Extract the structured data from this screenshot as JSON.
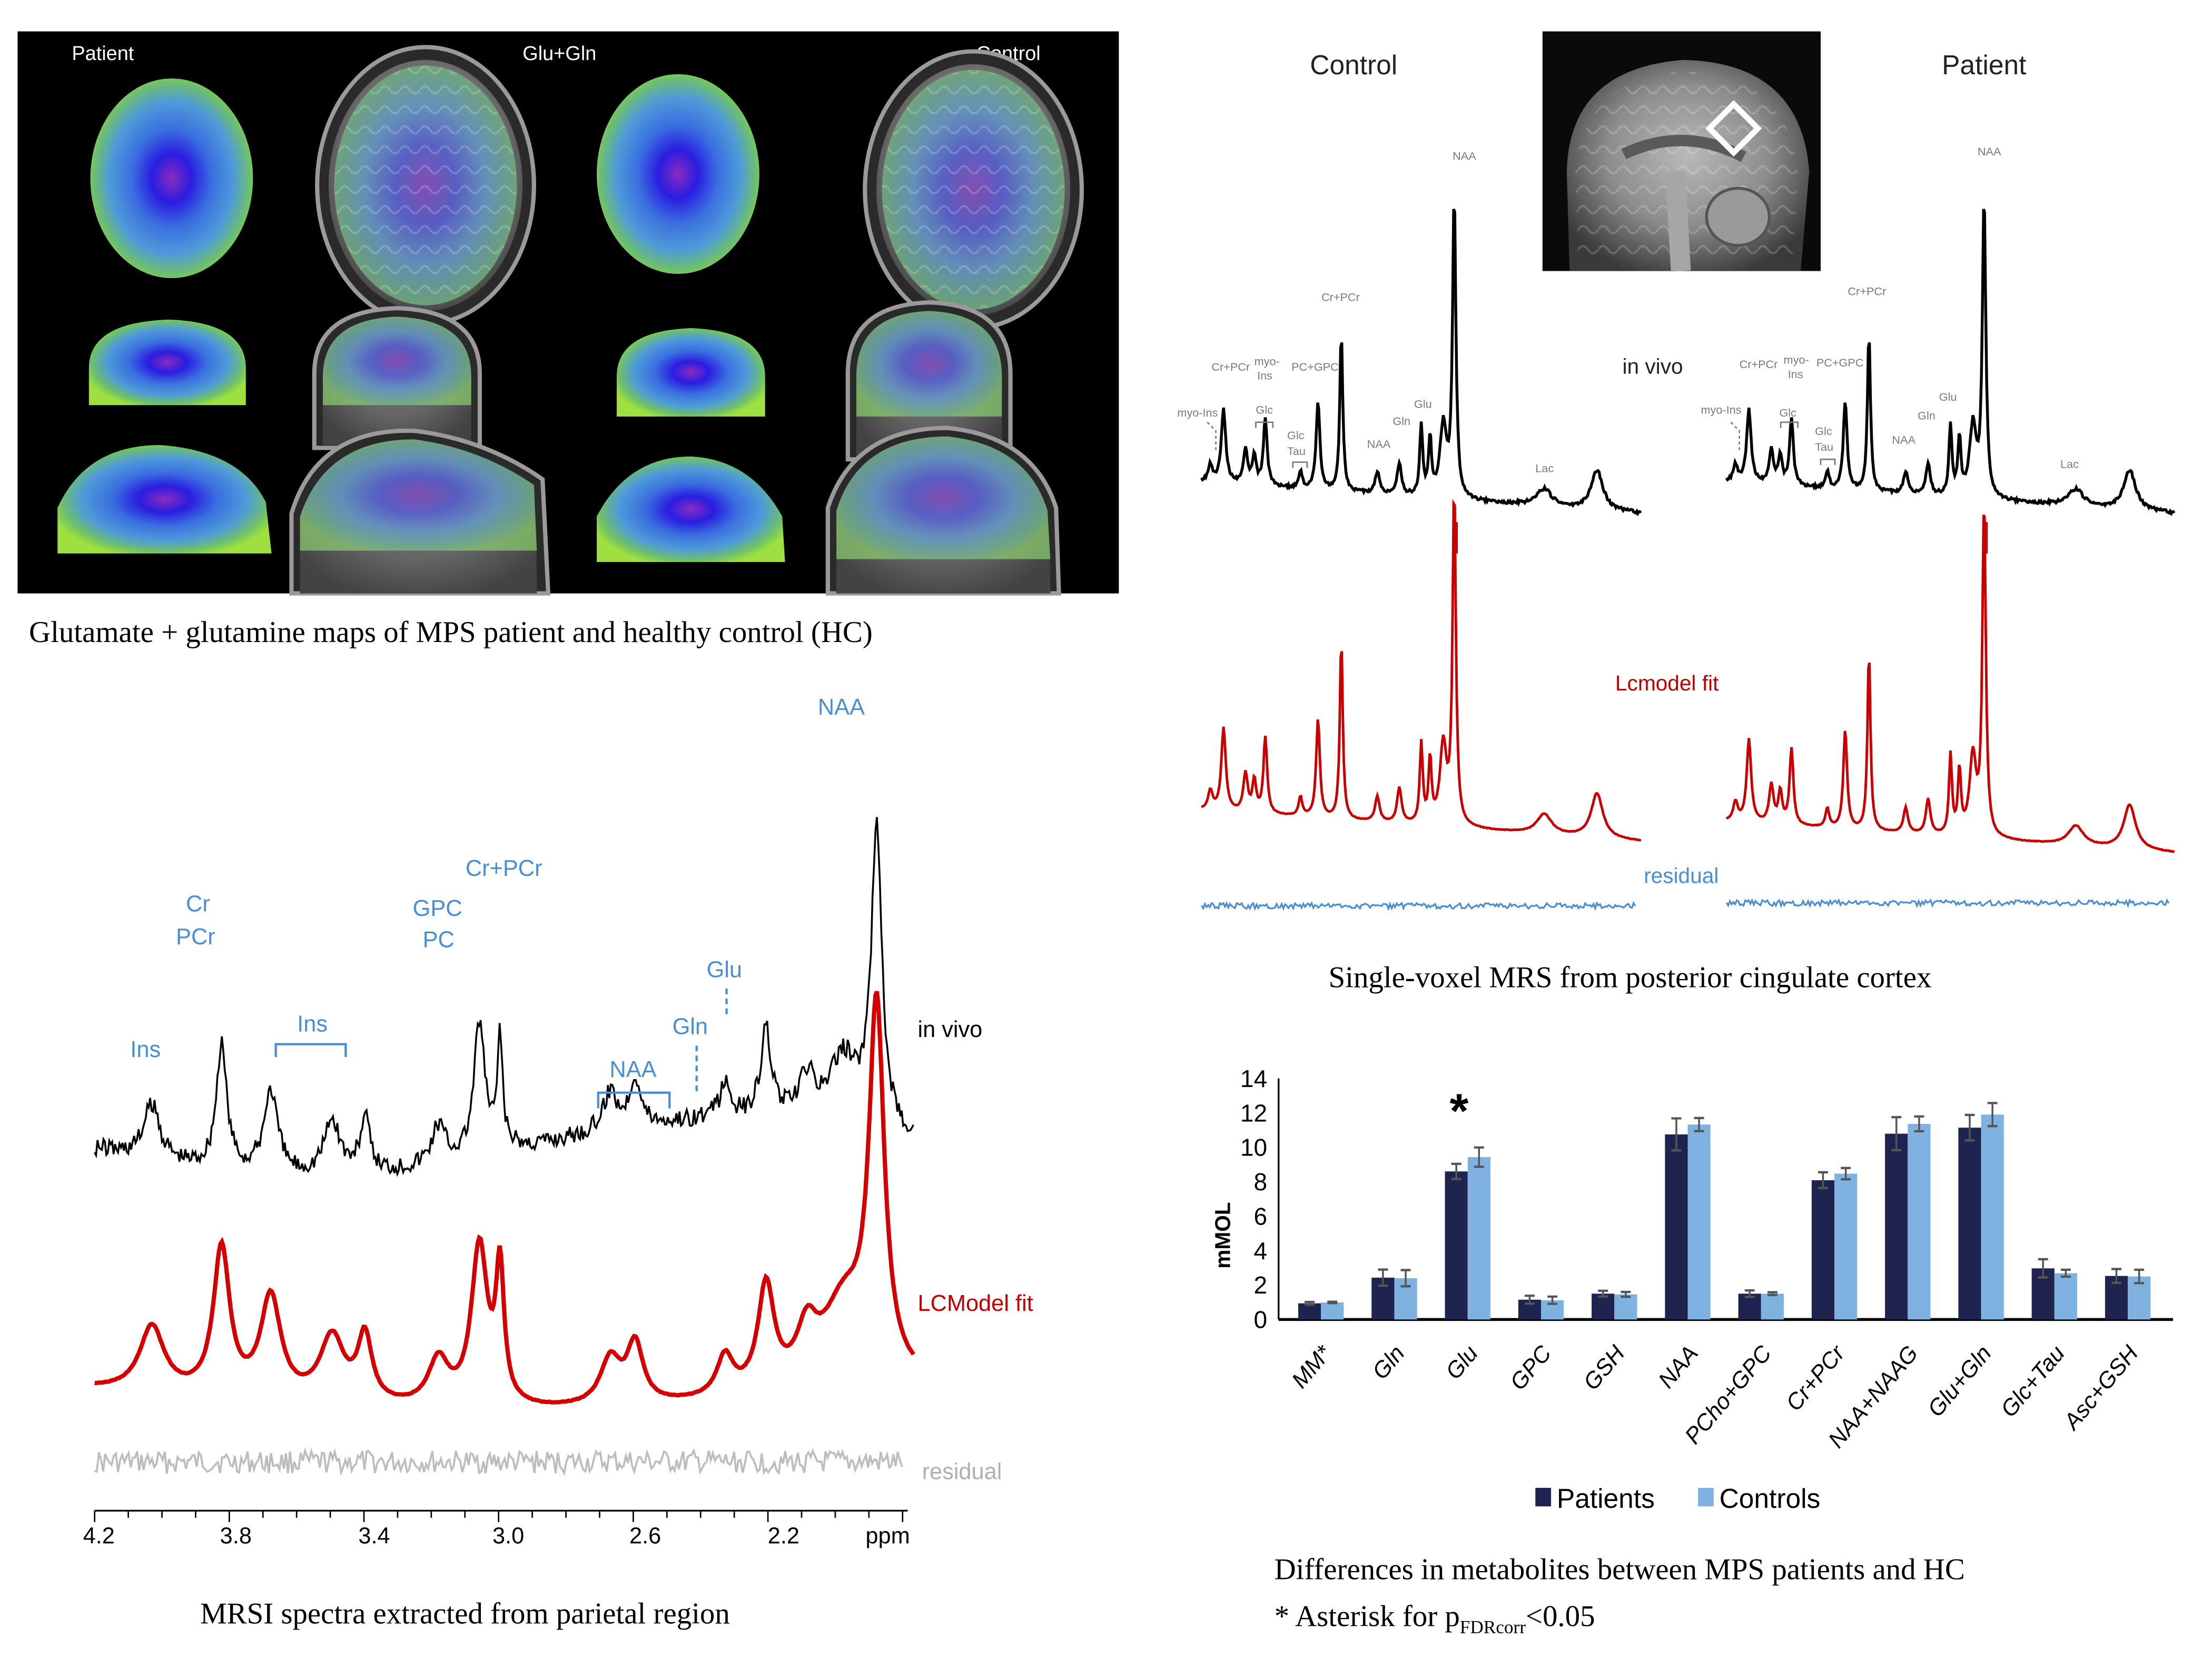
{
  "panel_a": {
    "labels": {
      "left": "Patient",
      "center": "Glu+Gln",
      "right": "Control"
    },
    "caption": "Glutamate + glutamine maps of MPS patient and healthy control (HC)"
  },
  "panel_b": {
    "control_title": "Control",
    "patient_title": "Patient",
    "in_vivo_label": "in vivo",
    "fit_label": "Lcmodel fit",
    "residual_label": "residual",
    "caption": "Single-voxel MRS from posterior cingulate cortex",
    "peak_labels": {
      "naa": "NAA",
      "cr_pcr": "Cr+PCr",
      "cr_pcr_small": "Cr+PCr",
      "myo_ins_top": "myo-",
      "myo_ins_bottom": "Ins",
      "pc_gpc": "PC+GPC",
      "myo_ins": "myo-Ins",
      "glc": "Glc",
      "glc_tau_top": "Glc",
      "glc_tau_bottom": "Tau",
      "naa_small": "NAA",
      "gln": "Gln",
      "glu": "Glu",
      "lac": "Lac"
    }
  },
  "panel_c": {
    "in_vivo_label": "in vivo",
    "fit_label": "LCModel fit",
    "residual_label": "residual",
    "caption": "MRSI spectra extracted from parietal region",
    "x_axis_unit": "ppm",
    "x_ticks": [
      "4.2",
      "3.8",
      "3.4",
      "3.0",
      "2.6",
      "2.2"
    ],
    "peak_labels": {
      "ins": "Ins",
      "cr_top": "Cr",
      "cr_bottom": "PCr",
      "ins_bracket": "Ins",
      "gpc_top": "GPC",
      "gpc_bottom": "PC",
      "cr_pcr": "Cr+PCr",
      "naa_bracket": "NAA",
      "gln": "Gln",
      "glu": "Glu",
      "naa": "NAA"
    },
    "colors": {
      "label": "#4a8fd4",
      "fit": "#d40000",
      "residual": "#b8b8b8",
      "invivo": "#000000"
    }
  },
  "panel_d": {
    "caption_line1": "Differences in metabolites between MPS patients and HC",
    "caption_line2_prefix": "* Asterisk for p",
    "caption_line2_sub": "FDRcorr",
    "caption_line2_suffix": "<0.05"
  },
  "chart_data": {
    "type": "bar",
    "title": "",
    "xlabel": "",
    "ylabel": "mMOL",
    "ylim": [
      0,
      14
    ],
    "yticks": [
      0,
      2,
      4,
      6,
      8,
      10,
      12,
      14
    ],
    "grid": false,
    "legend_position": "bottom",
    "categories": [
      "MM*",
      "Gln",
      "Glu",
      "GPC",
      "GSH",
      "NAA",
      "PCho+GPC",
      "Cr+PCr",
      "NAA+NAAG",
      "Glu+Gln",
      "Glc+Tau",
      "Asc+GSH"
    ],
    "series": [
      {
        "name": "Patients",
        "color": "#1e2350",
        "values": [
          0.94,
          2.43,
          8.6,
          1.15,
          1.5,
          10.75,
          1.5,
          8.09,
          10.79,
          11.14,
          2.97,
          2.53
        ],
        "errors": [
          0.08,
          0.47,
          0.44,
          0.23,
          0.17,
          0.93,
          0.19,
          0.46,
          0.96,
          0.74,
          0.53,
          0.4
        ]
      },
      {
        "name": "Controls",
        "color": "#7fb2e0",
        "values": [
          0.99,
          2.4,
          9.43,
          1.12,
          1.46,
          11.32,
          1.5,
          8.47,
          11.36,
          11.9,
          2.69,
          2.5
        ],
        "errors": [
          0.04,
          0.47,
          0.56,
          0.21,
          0.14,
          0.38,
          0.08,
          0.33,
          0.43,
          0.67,
          0.2,
          0.39
        ]
      }
    ],
    "significance": [
      {
        "category": "Glu",
        "marker": "*"
      }
    ]
  }
}
